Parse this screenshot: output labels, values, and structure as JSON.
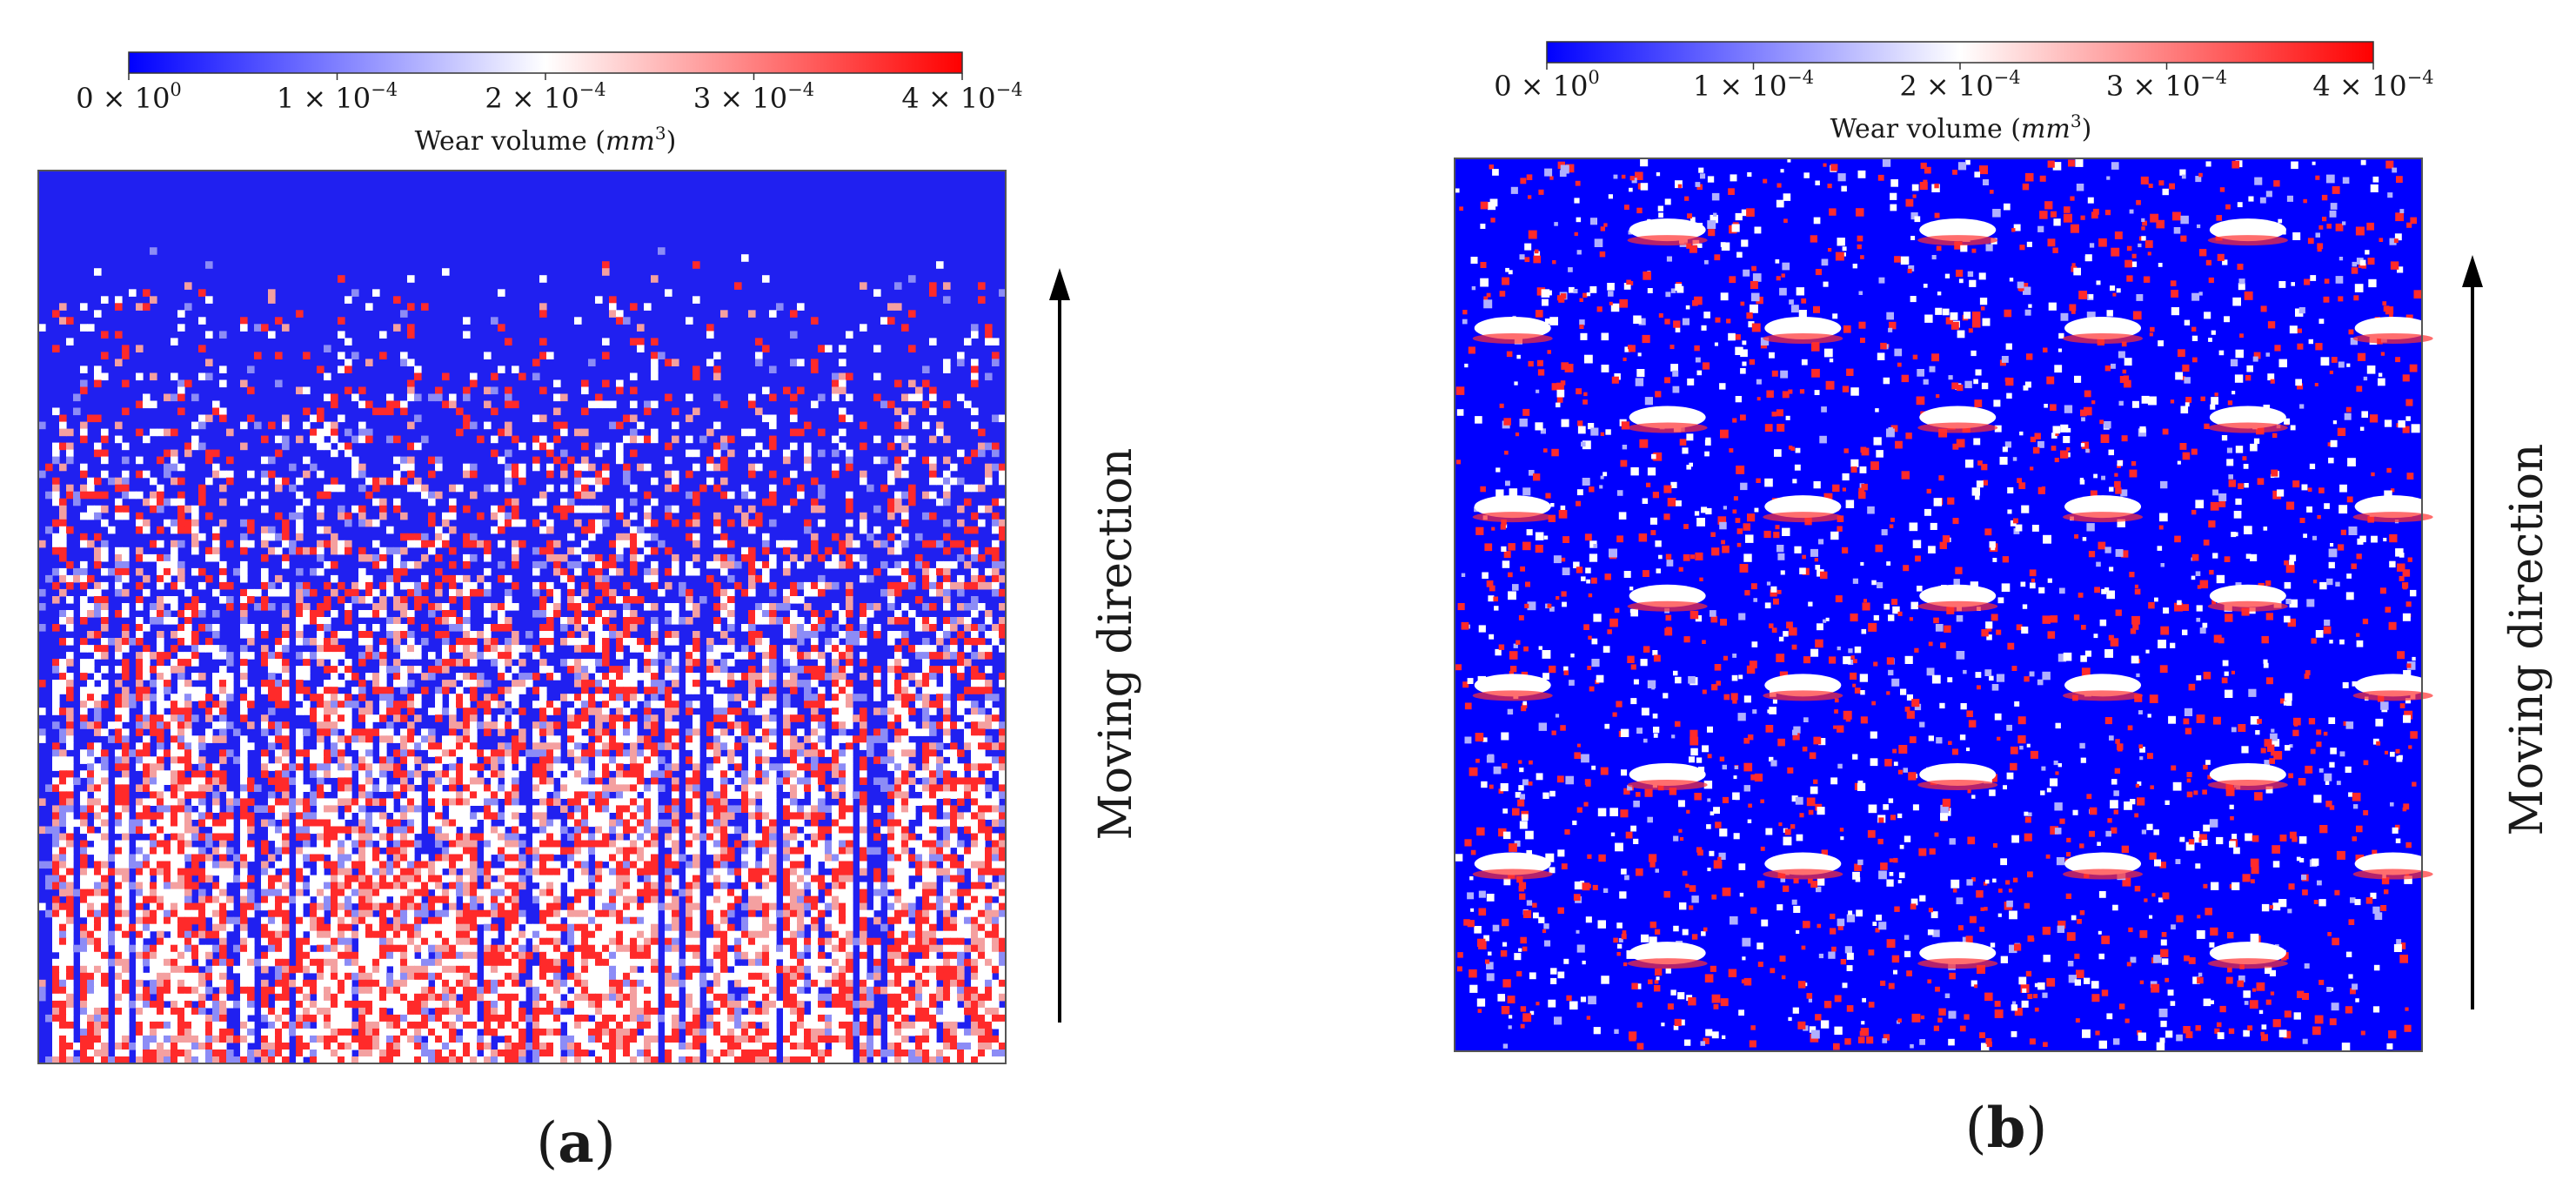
{
  "chart_data": [
    {
      "type": "heatmap",
      "panel_label": "a",
      "colorbar": {
        "label_text": "Wear volume (",
        "label_unit": "mm",
        "label_exp": "3",
        "label_close": ")",
        "range": [
          0,
          0.0004
        ],
        "ticks": [
          {
            "mantissa": "0",
            "times": "×",
            "base": "10",
            "exp": "0"
          },
          {
            "mantissa": "1",
            "times": "×",
            "base": "10",
            "exp": "−4"
          },
          {
            "mantissa": "2",
            "times": "×",
            "base": "10",
            "exp": "−4"
          },
          {
            "mantissa": "3",
            "times": "×",
            "base": "10",
            "exp": "−4"
          },
          {
            "mantissa": "4",
            "times": "×",
            "base": "10",
            "exp": "−4"
          }
        ],
        "colors": [
          "#0000ff",
          "#ffffff",
          "#ff0000"
        ]
      },
      "annotation": "Moving direction",
      "pattern": "vertical streaks; low wear near top, high wear toward bottom"
    },
    {
      "type": "heatmap",
      "panel_label": "b",
      "colorbar": {
        "label_text": "Wear volume (",
        "label_unit": "mm",
        "label_exp": "3",
        "label_close": ")",
        "range": [
          0,
          0.0004
        ],
        "ticks": [
          {
            "mantissa": "0",
            "times": "×",
            "base": "10",
            "exp": "0"
          },
          {
            "mantissa": "1",
            "times": "×",
            "base": "10",
            "exp": "−4"
          },
          {
            "mantissa": "2",
            "times": "×",
            "base": "10",
            "exp": "−4"
          },
          {
            "mantissa": "3",
            "times": "×",
            "base": "10",
            "exp": "−4"
          },
          {
            "mantissa": "4",
            "times": "×",
            "base": "10",
            "exp": "−4"
          }
        ],
        "colors": [
          "#0000ff",
          "#ffffff",
          "#ff0000"
        ]
      },
      "annotation": "Moving direction",
      "pattern": "mostly low wear with scattered hot spots and periodic white crescent patches"
    }
  ]
}
